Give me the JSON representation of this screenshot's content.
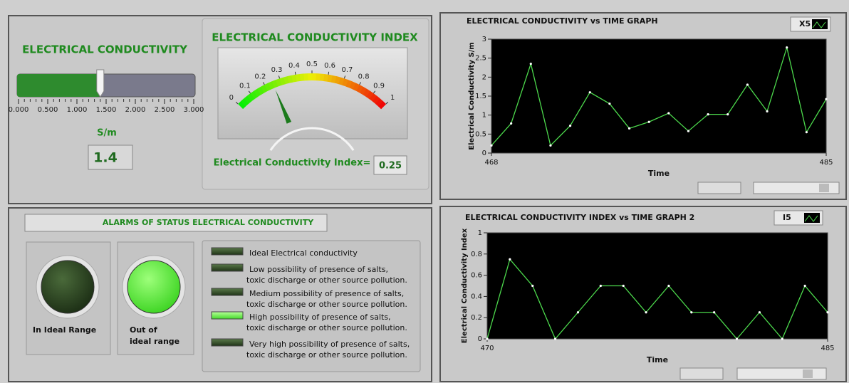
{
  "slider": {
    "title": "ELECTRICAL CONDUCTIVITY",
    "range": [
      0,
      3
    ],
    "ticks": [
      {
        "value": 0,
        "label": "0.000"
      },
      {
        "value": 0.5,
        "label": "0.500"
      },
      {
        "value": 1,
        "label": "1.000"
      },
      {
        "value": 1.5,
        "label": "1.500"
      },
      {
        "value": 2,
        "label": "2.000"
      },
      {
        "value": 2.5,
        "label": "2.500"
      },
      {
        "value": 3,
        "label": "3.000"
      }
    ],
    "value": 1.4,
    "unit": "S/m"
  },
  "gauge": {
    "title": "ELECTRICAL CONDUCTIVITY INDEX",
    "range": [
      0,
      1
    ],
    "ticks": [
      0,
      0.1,
      0.2,
      0.3,
      0.4,
      0.5,
      0.6,
      0.7,
      0.8,
      0.9,
      1
    ],
    "value": 0.25,
    "readout_label": "Electrical Conductivity Index="
  },
  "alarms": {
    "title": "ALARMS OF STATUS  ELECTRICAL CONDUCTIVITY",
    "leds": [
      {
        "label": [
          "In Ideal  Range"
        ],
        "on": false
      },
      {
        "label": [
          "Out of",
          "ideal range"
        ],
        "on": true
      }
    ],
    "indicators": [
      {
        "label": [
          "Ideal Electrical conductivity"
        ],
        "on": false
      },
      {
        "label": [
          "Low possibility of presence of salts,",
          "toxic discharge or other source pollution."
        ],
        "on": false
      },
      {
        "label": [
          "Medium possibility of presence of salts,",
          "toxic discharge or other source pollution."
        ],
        "on": false
      },
      {
        "label": [
          "High possibility of presence of salts,",
          "toxic discharge or other source pollution."
        ],
        "on": true
      },
      {
        "label": [
          "Very high possibility of presence of salts,",
          "toxic discharge or other source pollution."
        ],
        "on": false
      }
    ]
  },
  "graphs": [
    {
      "type": "line",
      "title": "ELECTRICAL CONDUCTIVITY vs TIME GRAPH",
      "x_label": "Time",
      "y_label": "Electrical Conductivity S/m",
      "x": [
        468,
        469,
        470,
        471,
        472,
        473,
        474,
        475,
        476,
        477,
        478,
        479,
        480,
        481,
        482,
        483,
        484,
        485
      ],
      "series": [
        {
          "name": "X5",
          "color": "#4cd94c",
          "values": [
            0.2,
            0.78,
            2.35,
            0.2,
            0.72,
            1.6,
            1.3,
            0.65,
            0.82,
            1.05,
            0.58,
            1.02,
            1.02,
            1.8,
            1.1,
            2.78,
            0.55,
            1.42
          ]
        }
      ],
      "xlim": [
        468,
        485
      ],
      "xticks": [
        468,
        485
      ],
      "ylim": [
        0,
        3
      ],
      "yticks": [
        0,
        0.5,
        1,
        1.5,
        2,
        2.5,
        3
      ]
    },
    {
      "type": "line",
      "title": "ELECTRICAL CONDUCTIVITY INDEX vs TIME GRAPH  2",
      "x_label": "Time",
      "y_label": "Electrical Conductivity Index",
      "x": [
        470,
        471,
        472,
        473,
        474,
        475,
        476,
        477,
        478,
        479,
        480,
        481,
        482,
        483,
        484,
        485
      ],
      "series": [
        {
          "name": "I5",
          "color": "#4cd94c",
          "values": [
            0,
            0.75,
            0.5,
            0,
            0.25,
            0.5,
            0.5,
            0.25,
            0.5,
            0.25,
            0.25,
            0,
            0.25,
            0,
            0.5,
            0.25
          ]
        }
      ],
      "xlim": [
        470,
        485
      ],
      "xticks": [
        470,
        485
      ],
      "ylim": [
        0,
        1
      ],
      "yticks": [
        0,
        0.2,
        0.4,
        0.6,
        0.8,
        1
      ]
    }
  ]
}
